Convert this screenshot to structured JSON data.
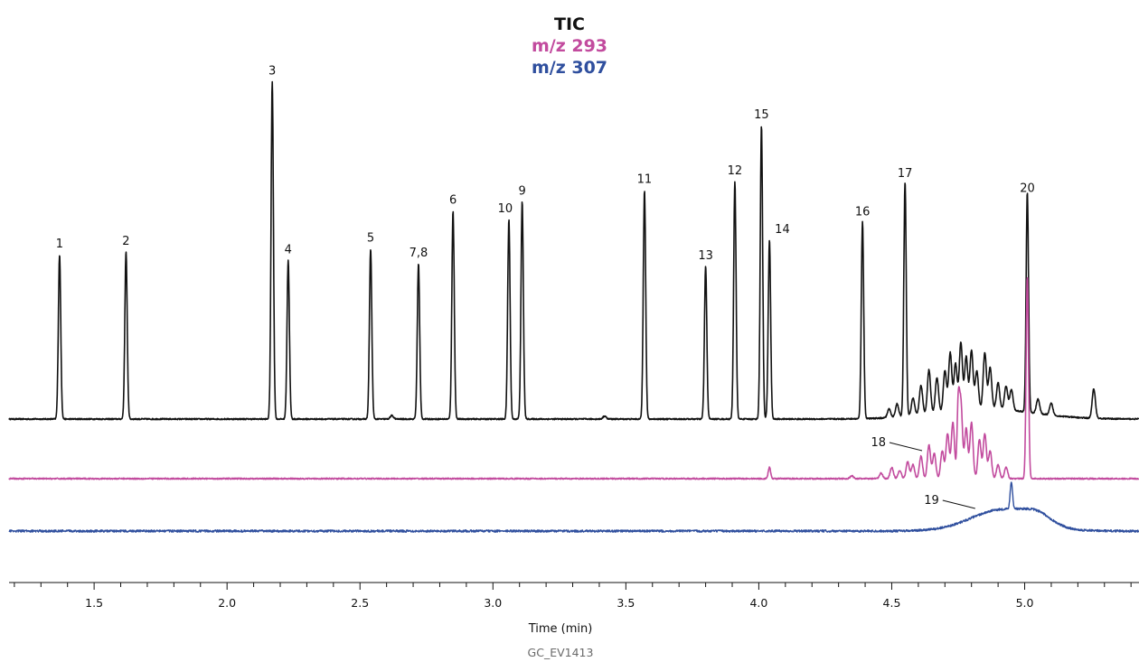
{
  "chart_data": {
    "type": "line",
    "title": "",
    "xlabel": "Time (min)",
    "ylabel": "",
    "xlim": [
      1.18,
      5.43
    ],
    "x_ticks": [
      "1.5",
      "2.0",
      "2.5",
      "3.0",
      "3.5",
      "4.0",
      "4.5",
      "5.0"
    ],
    "x_tick_values": [
      1.5,
      2.0,
      2.5,
      3.0,
      3.5,
      4.0,
      4.5,
      5.0
    ],
    "minor_tick_step": 0.1,
    "grid": false,
    "legend_position": "top-center",
    "image_code": "GC_EV1413",
    "series": [
      {
        "name": "TIC",
        "color": "#111111",
        "baseline": 0,
        "peaks": [
          {
            "label": "1",
            "x": 1.37,
            "h": 0.56
          },
          {
            "label": "2",
            "x": 1.62,
            "h": 0.57
          },
          {
            "label": "3",
            "x": 2.17,
            "h": 1.15
          },
          {
            "label": "4",
            "x": 2.23,
            "h": 0.54
          },
          {
            "label": "5",
            "x": 2.54,
            "h": 0.58
          },
          {
            "label": "7,8",
            "x": 2.72,
            "h": 0.53
          },
          {
            "label": "6",
            "x": 2.85,
            "h": 0.71
          },
          {
            "label": "10",
            "x": 3.06,
            "h": 0.68
          },
          {
            "label": "9",
            "x": 3.11,
            "h": 0.74
          },
          {
            "label": "11",
            "x": 3.57,
            "h": 0.78
          },
          {
            "label": "13",
            "x": 3.8,
            "h": 0.52
          },
          {
            "label": "12",
            "x": 3.91,
            "h": 0.81
          },
          {
            "label": "15",
            "x": 4.01,
            "h": 1.0
          },
          {
            "label": "14",
            "x": 4.04,
            "h": 0.61
          },
          {
            "label": "16",
            "x": 4.39,
            "h": 0.67
          },
          {
            "label": "17",
            "x": 4.55,
            "h": 0.8
          },
          {
            "label": "20",
            "x": 5.01,
            "h": 0.75
          }
        ]
      },
      {
        "name": "m/z 293",
        "color": "#c24b9e",
        "baseline": 0,
        "peaks": [
          {
            "label": "",
            "x": 4.04,
            "h": 0.04
          },
          {
            "label": "18",
            "x": 4.75,
            "h": 0.24
          },
          {
            "label": "",
            "x": 5.01,
            "h": 0.72
          }
        ]
      },
      {
        "name": "m/z 307",
        "color": "#2f4f9e",
        "baseline": 0,
        "peaks": [
          {
            "label": "19",
            "x": 4.95,
            "h": 0.1
          }
        ]
      }
    ]
  }
}
